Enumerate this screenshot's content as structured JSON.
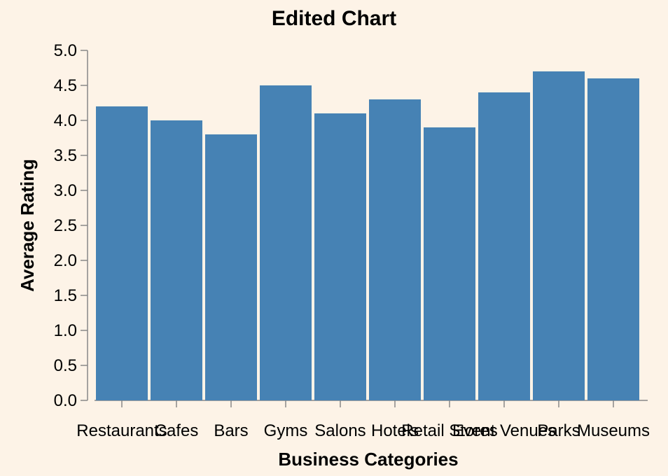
{
  "chart_data": {
    "type": "bar",
    "title": "Edited Chart",
    "xlabel": "Business Categories",
    "ylabel": "Average Rating",
    "ylim": [
      0,
      5
    ],
    "yticks": [
      "0.0",
      "0.5",
      "1.0",
      "1.5",
      "2.0",
      "2.5",
      "3.0",
      "3.5",
      "4.0",
      "4.5",
      "5.0"
    ],
    "categories": [
      "Restaurants",
      "Cafes",
      "Bars",
      "Gyms",
      "Salons",
      "Hotels",
      "Retail Stores",
      "Event Venues",
      "Parks",
      "Museums"
    ],
    "values": [
      4.2,
      4.0,
      3.8,
      4.5,
      4.1,
      4.3,
      3.9,
      4.4,
      4.7,
      4.6
    ],
    "bar_color": "#4682b4",
    "background": "#fdf3e7",
    "grid": false,
    "legend": "none"
  }
}
